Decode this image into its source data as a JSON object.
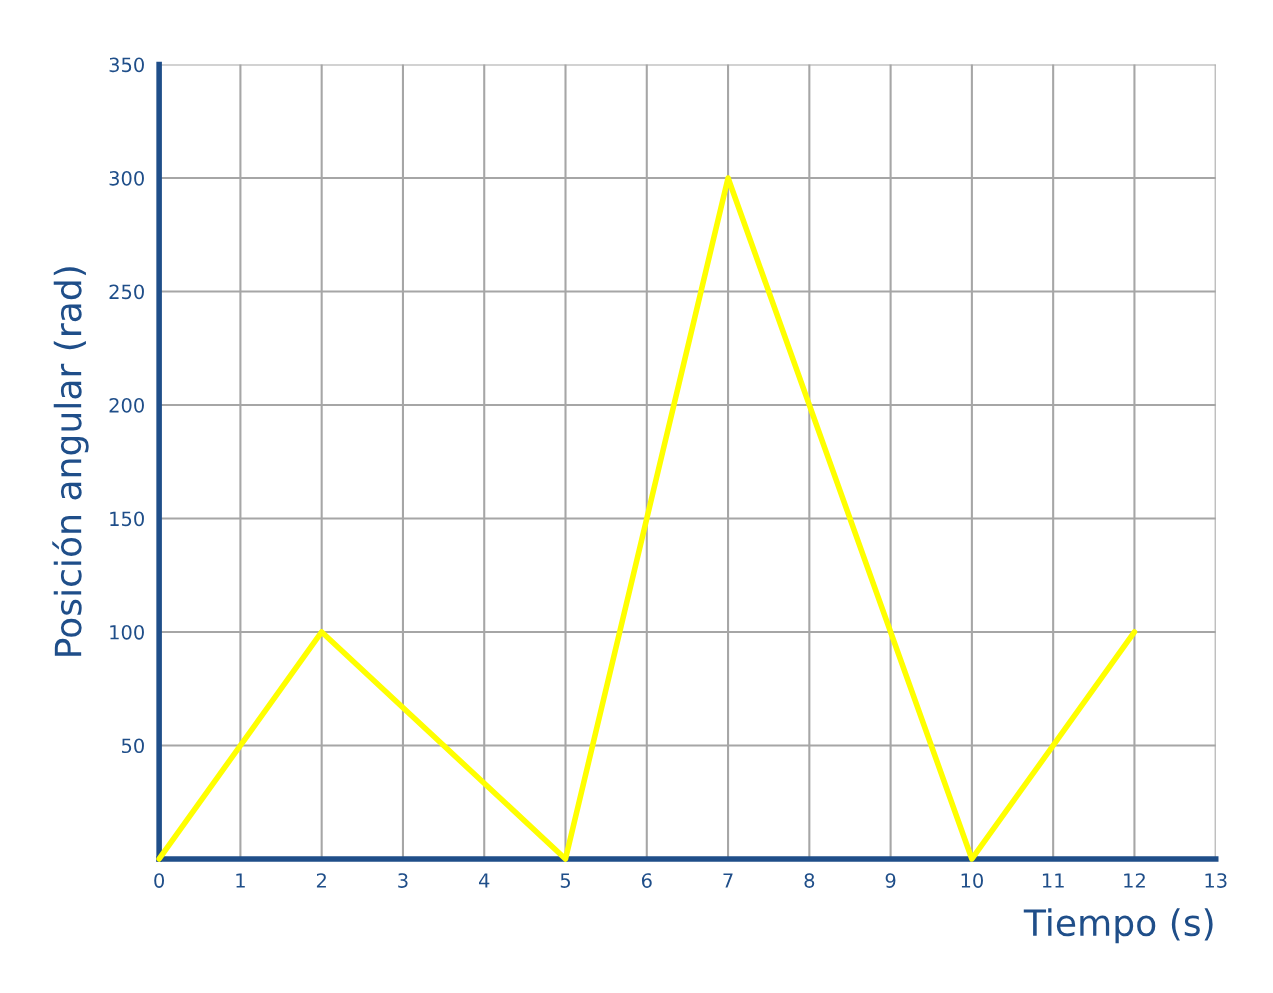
{
  "chart_data": {
    "type": "line",
    "xlabel": "Tiempo (s)",
    "ylabel": "Posición angular (rad)",
    "x": [
      0,
      2,
      5,
      7,
      10,
      12
    ],
    "series": [
      {
        "color": "#ffff00",
        "values": [
          0,
          100,
          0,
          300,
          0,
          100
        ]
      }
    ],
    "xlim": [
      0,
      13
    ],
    "ylim": [
      0,
      350
    ],
    "xticks": [
      0,
      1,
      2,
      3,
      4,
      5,
      6,
      7,
      8,
      9,
      10,
      11,
      12,
      13
    ],
    "yticks": [
      50,
      100,
      150,
      200,
      250,
      300,
      350
    ],
    "grid": true,
    "legend": false,
    "marker": "none",
    "line_style": "solid"
  }
}
